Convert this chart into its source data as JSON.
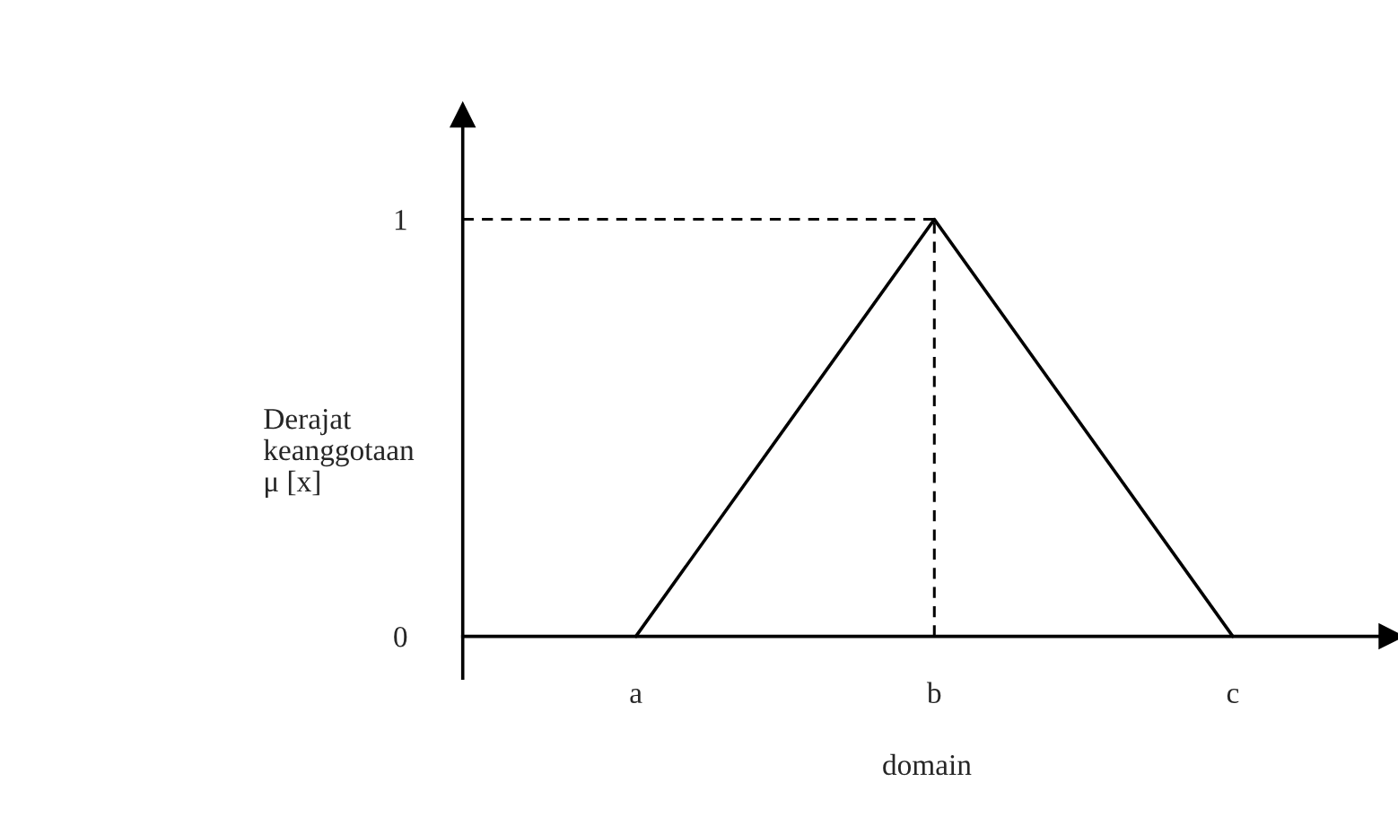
{
  "chart_data": {
    "type": "line",
    "xlabel": "domain",
    "ylabel": "Derajat\nkeanggotaan\nμ [x]",
    "categories": [
      "a",
      "b",
      "c"
    ],
    "series": [
      {
        "color": "#000000",
        "values": [
          0,
          1,
          0
        ]
      }
    ],
    "ylim": [
      -0.1,
      1.25
    ],
    "yticks": [
      0,
      1
    ],
    "ref_lines": [
      {
        "axis": "y",
        "value": 1,
        "color": "#000000",
        "line_style": "dashed"
      },
      {
        "axis": "x",
        "value": "b",
        "color": "#000000",
        "line_style": "dashed"
      }
    ],
    "grid": false,
    "legend": false,
    "marker": "none",
    "line_style": "solid"
  }
}
